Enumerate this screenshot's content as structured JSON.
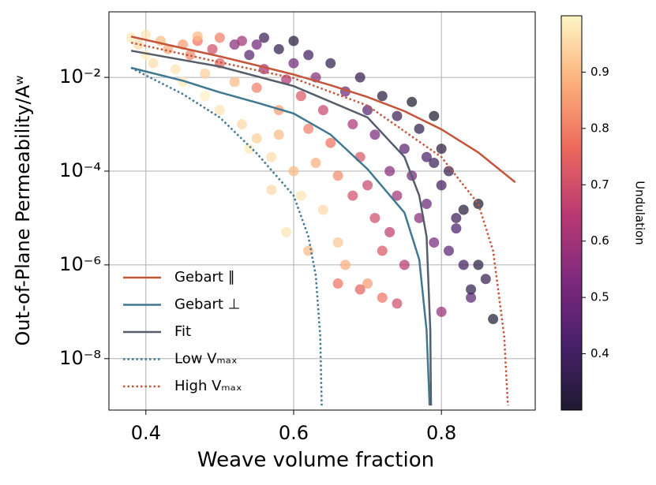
{
  "chart_data": {
    "type": "scatter",
    "xlabel": "Weave volume fraction",
    "ylabel": "Out-of-Plane Permeability/Aʷ",
    "xlim": [
      0.35,
      0.927
    ],
    "ylim": [
      8e-10,
      0.25
    ],
    "yscale": "log",
    "grid": true,
    "xticks": [
      0.4,
      0.6,
      0.8
    ],
    "yticks": [
      {
        "value": 0.01,
        "label": "10⁻²"
      },
      {
        "value": 0.0001,
        "label": "10⁻⁴"
      },
      {
        "value": 1e-06,
        "label": "10⁻⁶"
      },
      {
        "value": 1e-08,
        "label": "10⁻⁸"
      }
    ],
    "legend_position": "lower left",
    "colorbar": {
      "label": "Undulation",
      "clim": [
        0.3,
        1.0
      ],
      "ticks": [
        0.4,
        0.5,
        0.6,
        0.7,
        0.8,
        0.9
      ],
      "colormap": [
        "#1f1a30",
        "#48206a",
        "#7f2a7d",
        "#bb3a72",
        "#ec6a5d",
        "#fbb17c",
        "#fdf6c5"
      ]
    },
    "points": {
      "x": [
        0.38,
        0.39,
        0.4,
        0.4,
        0.41,
        0.42,
        0.43,
        0.44,
        0.45,
        0.45,
        0.46,
        0.47,
        0.48,
        0.48,
        0.49,
        0.5,
        0.5,
        0.52,
        0.52,
        0.53,
        0.54,
        0.55,
        0.55,
        0.56,
        0.56,
        0.57,
        0.58,
        0.58,
        0.59,
        0.6,
        0.6,
        0.6,
        0.61,
        0.61,
        0.62,
        0.62,
        0.63,
        0.63,
        0.64,
        0.64,
        0.65,
        0.65,
        0.66,
        0.66,
        0.67,
        0.67,
        0.68,
        0.68,
        0.69,
        0.69,
        0.7,
        0.7,
        0.7,
        0.71,
        0.71,
        0.72,
        0.72,
        0.72,
        0.73,
        0.73,
        0.74,
        0.74,
        0.75,
        0.75,
        0.76,
        0.76,
        0.77,
        0.77,
        0.78,
        0.78,
        0.79,
        0.79,
        0.8,
        0.8,
        0.8,
        0.81,
        0.81,
        0.82,
        0.82,
        0.83,
        0.83,
        0.84,
        0.84,
        0.85,
        0.85,
        0.86,
        0.87,
        0.79,
        0.58,
        0.55,
        0.53,
        0.5,
        0.47,
        0.54,
        0.59,
        0.62,
        0.57,
        0.66,
        0.69,
        0.74
      ],
      "values": [
        0.07,
        0.05,
        0.08,
        0.03,
        0.02,
        0.06,
        0.04,
        0.015,
        0.05,
        0.008,
        0.03,
        0.06,
        0.012,
        0.004,
        0.04,
        0.02,
        0.002,
        0.008,
        0.05,
        0.001,
        0.03,
        0.0005,
        0.006,
        0.015,
        0.07,
        0.0002,
        0.002,
        0.04,
        0.009,
        0.0001,
        0.02,
        0.06,
        3e-05,
        0.004,
        0.0008,
        0.03,
        0.00015,
        0.01,
        1.5e-05,
        0.002,
        0.0004,
        0.02,
        8e-05,
        3e-06,
        0.005,
        1e-06,
        0.001,
        3e-05,
        0.0002,
        0.01,
        5e-05,
        4e-07,
        0.002,
        1e-05,
        0.0006,
        2e-07,
        0.004,
        2e-06,
        0.0001,
        5e-06,
        0.0015,
        3e-05,
        1e-06,
        0.0003,
        0.003,
        8e-05,
        1e-05,
        0.0008,
        2e-05,
        0.0002,
        0.0015,
        3e-06,
        5e-05,
        1e-07,
        0.0003,
        2e-06,
        0.0001,
        1e-05,
        6e-06,
        1e-06,
        1.5e-05,
        2e-07,
        3e-07,
        1e-06,
        2e-05,
        5e-07,
        7e-08,
        0.00015,
        0.0006,
        0.05,
        0.06,
        0.07,
        0.075,
        0.0003,
        5e-06,
        2e-06,
        4e-05,
        4e-07,
        3e-07,
        1.5e-07
      ],
      "c": [
        0.98,
        0.95,
        0.97,
        0.99,
        0.96,
        0.9,
        0.88,
        0.97,
        0.85,
        0.98,
        0.82,
        0.78,
        0.93,
        0.99,
        0.7,
        0.75,
        0.97,
        0.9,
        0.55,
        0.95,
        0.45,
        0.93,
        0.8,
        0.6,
        0.38,
        0.96,
        0.85,
        0.35,
        0.62,
        0.9,
        0.5,
        0.32,
        0.97,
        0.72,
        0.8,
        0.4,
        0.88,
        0.55,
        0.95,
        0.68,
        0.78,
        0.35,
        0.82,
        0.92,
        0.5,
        0.88,
        0.62,
        0.7,
        0.72,
        0.36,
        0.68,
        0.85,
        0.45,
        0.7,
        0.52,
        0.78,
        0.33,
        0.72,
        0.55,
        0.66,
        0.38,
        0.6,
        0.64,
        0.45,
        0.3,
        0.5,
        0.55,
        0.35,
        0.48,
        0.42,
        0.3,
        0.52,
        0.4,
        0.58,
        0.33,
        0.45,
        0.36,
        0.38,
        0.42,
        0.4,
        0.32,
        0.45,
        0.35,
        0.33,
        0.3,
        0.36,
        0.31,
        0.38,
        0.9,
        0.5,
        0.6,
        0.8,
        0.9,
        0.98,
        0.97,
        0.9,
        0.95,
        0.78,
        0.75,
        0.7
      ]
    },
    "series": [
      {
        "name": "Gebart ∥",
        "color": "#c4553a",
        "style": "solid",
        "x": [
          0.38,
          0.45,
          0.5,
          0.55,
          0.6,
          0.65,
          0.7,
          0.75,
          0.8,
          0.85,
          0.9
        ],
        "values": [
          0.074,
          0.042,
          0.028,
          0.018,
          0.0115,
          0.0068,
          0.0038,
          0.0019,
          0.00078,
          0.00025,
          5.8e-05
        ]
      },
      {
        "name": "Gebart ⊥",
        "color": "#3f7890",
        "style": "solid",
        "x": [
          0.38,
          0.45,
          0.5,
          0.55,
          0.6,
          0.65,
          0.7,
          0.75,
          0.77,
          0.78,
          0.784
        ],
        "values": [
          0.016,
          0.0085,
          0.0048,
          0.0029,
          0.0017,
          0.0006,
          0.00011,
          1.3e-05,
          1.3e-06,
          4e-08,
          1e-09
        ]
      },
      {
        "name": "Fit",
        "color": "#555d6b",
        "style": "solid",
        "x": [
          0.38,
          0.5,
          0.6,
          0.7,
          0.75,
          0.77,
          0.78,
          0.785,
          0.786
        ],
        "values": [
          0.037,
          0.017,
          0.0065,
          0.0014,
          0.0002,
          3e-05,
          4e-06,
          4e-08,
          1e-09
        ]
      },
      {
        "name": "Low Vₘₐₓ",
        "color": "#3f7890",
        "style": "dotted",
        "x": [
          0.38,
          0.45,
          0.5,
          0.55,
          0.6,
          0.62,
          0.63,
          0.636,
          0.638
        ],
        "values": [
          0.016,
          0.0044,
          0.0014,
          0.00024,
          3e-05,
          4e-06,
          6e-07,
          3e-08,
          1e-09
        ]
      },
      {
        "name": "High Vₘₐₓ",
        "color": "#c4553a",
        "style": "dotted",
        "x": [
          0.38,
          0.5,
          0.6,
          0.7,
          0.8,
          0.85,
          0.87,
          0.885,
          0.89
        ],
        "values": [
          0.055,
          0.021,
          0.0096,
          0.0025,
          0.0002,
          2e-05,
          2e-06,
          3e-08,
          1e-09
        ]
      }
    ]
  }
}
